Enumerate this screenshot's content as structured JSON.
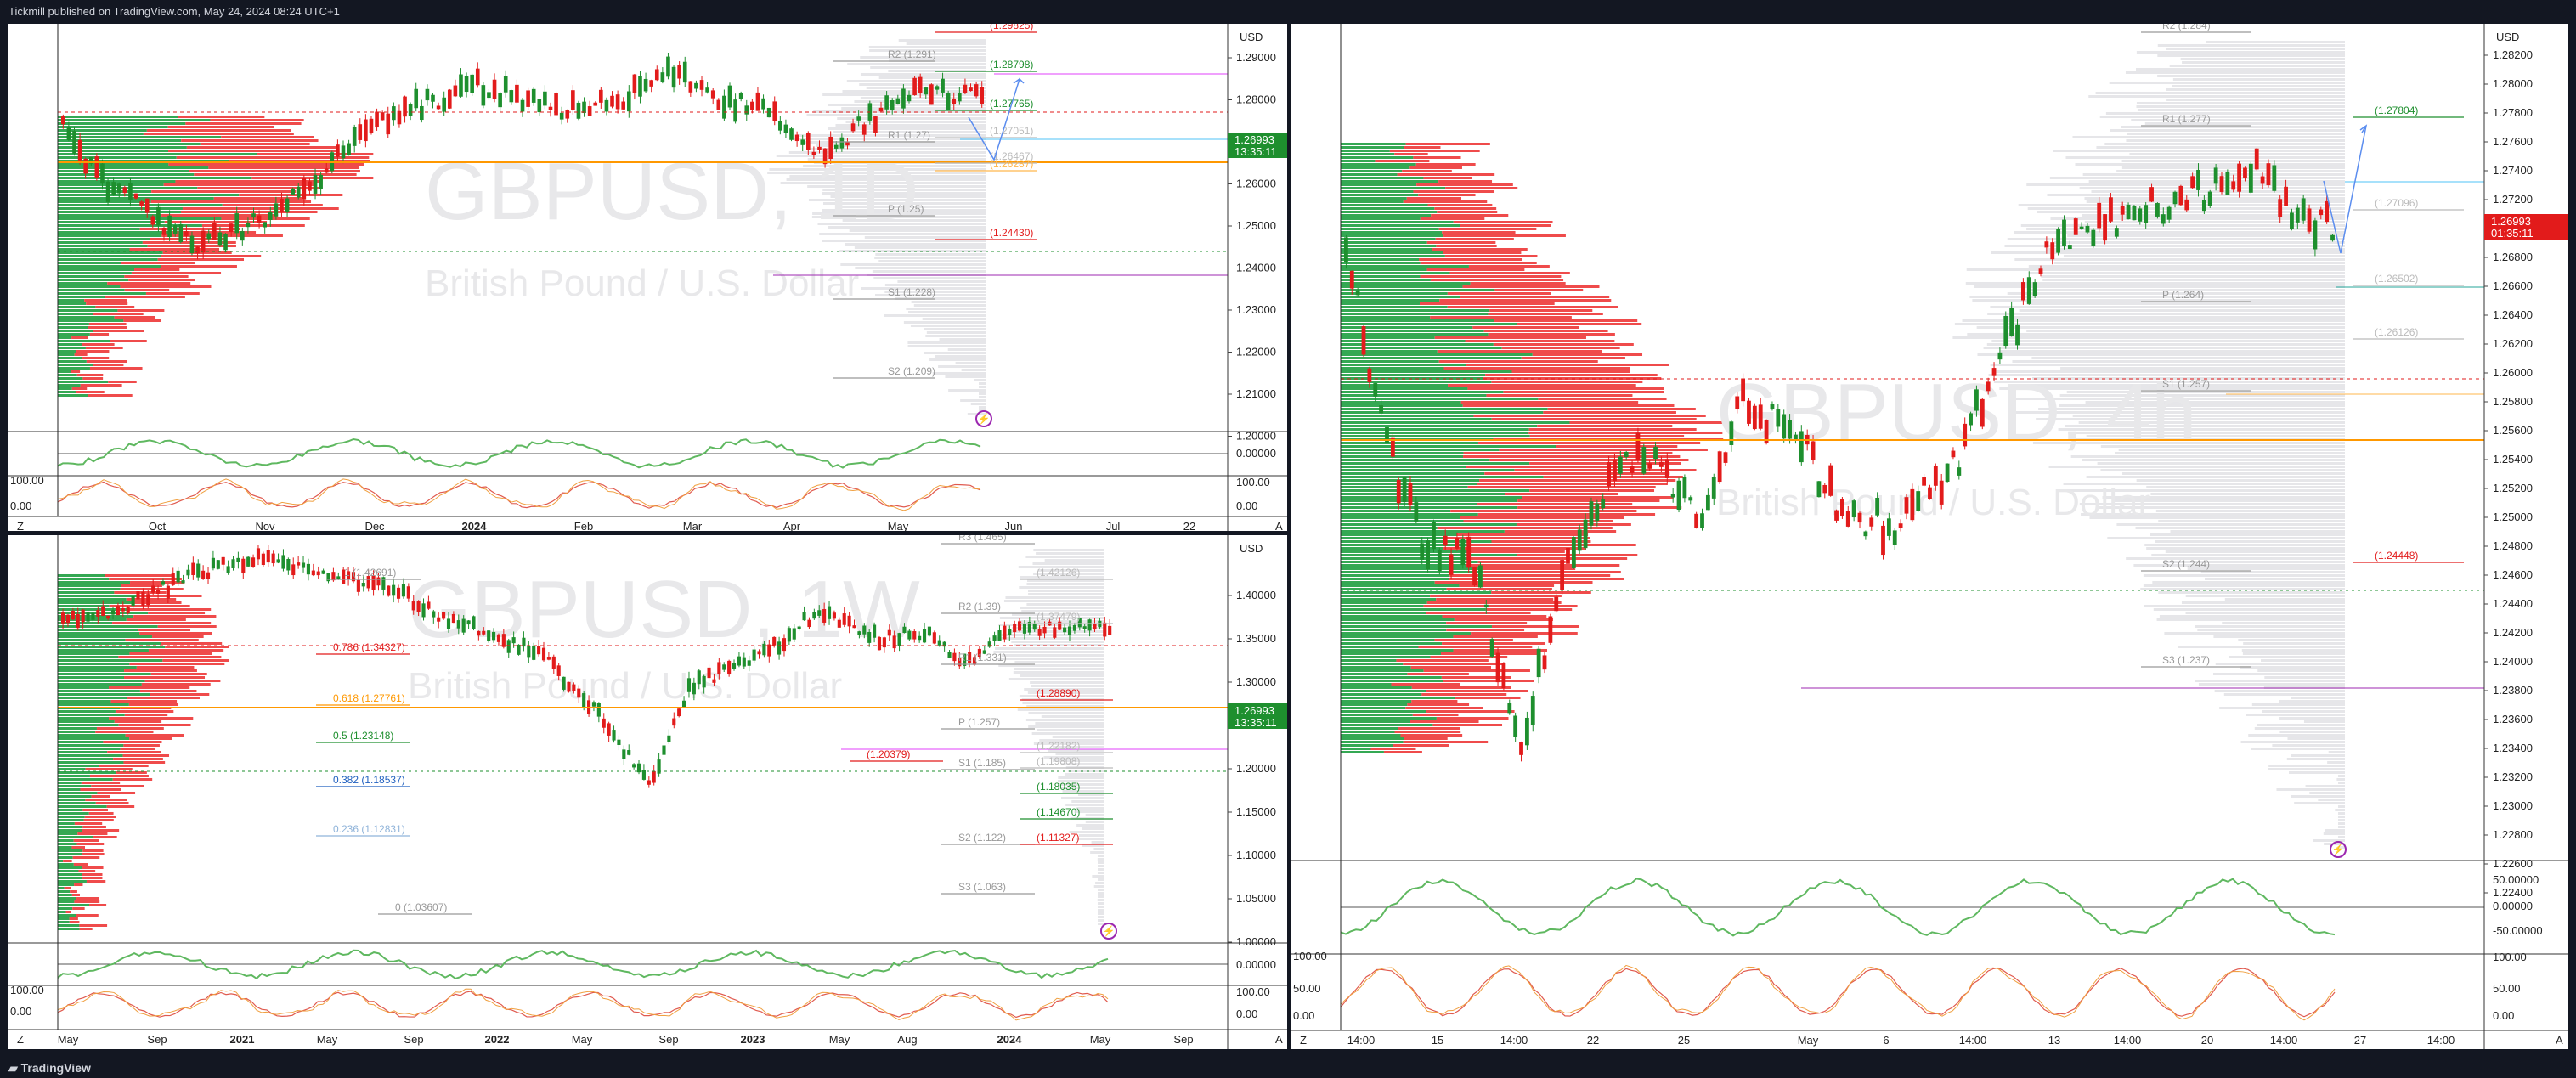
{
  "header": {
    "publisher": "Tickmill published on TradingView.com, May 24, 2024 08:24 UTC+1"
  },
  "footer": {
    "brand": "TradingView"
  },
  "colors": {
    "up": "#1e8f2e",
    "down": "#e21b1b",
    "accent_orange": "#ff9800",
    "bg": "#131722"
  },
  "panels": {
    "daily": {
      "symbol_watermark": "GBPUSD, 1D",
      "desc_watermark": "British Pound / U.S. Dollar",
      "currency": "USD",
      "price_axis": [
        "1.29000",
        "1.28000",
        "1.27000",
        "1.26000",
        "1.25000",
        "1.24000",
        "1.23000",
        "1.22000",
        "1.21000",
        "1.20000"
      ],
      "osc_axis": [
        "0.00000",
        "100.00",
        "0.00"
      ],
      "time_axis": [
        "Oct",
        "Nov",
        "Dec",
        "2024",
        "Feb",
        "Mar",
        "Apr",
        "May",
        "Jun",
        "Jul",
        "22"
      ],
      "price_box": {
        "price": "1.26993",
        "timer": "13:35:11"
      },
      "levels": [
        {
          "label": "(1.29825)",
          "color": "#e21b1b"
        },
        {
          "label": "R2 (1.291)",
          "color": "#999999"
        },
        {
          "label": "(1.28798)",
          "color": "#1e8f2e"
        },
        {
          "label": "(1.27765)",
          "color": "#1e8f2e"
        },
        {
          "label": "R1 (1.27)",
          "color": "#999999"
        },
        {
          "label": "(1.27051)",
          "color": "#bbbbbb"
        },
        {
          "label": "(1.26467)",
          "color": "#bbbbbb"
        },
        {
          "label": "(1.26287)",
          "color": "#ffb74d"
        },
        {
          "label": "P (1.25)",
          "color": "#999999"
        },
        {
          "label": "(1.24430)",
          "color": "#e21b1b"
        },
        {
          "label": "S1 (1.228)",
          "color": "#999999"
        },
        {
          "label": "S2 (1.209)",
          "color": "#999999"
        }
      ],
      "axis_corner": "Z",
      "axis_corner_right": "A"
    },
    "weekly": {
      "symbol_watermark": "GBPUSD, 1W",
      "desc_watermark": "British Pound / U.S. Dollar",
      "currency": "USD",
      "price_axis": [
        "1.40000",
        "1.35000",
        "1.30000",
        "1.25000",
        "1.20000",
        "1.15000",
        "1.10000",
        "1.05000",
        "1.00000"
      ],
      "osc_axis": [
        "0.00000",
        "100.00",
        "0.00"
      ],
      "time_axis": [
        "May",
        "Sep",
        "2021",
        "May",
        "Sep",
        "2022",
        "May",
        "Sep",
        "2023",
        "May",
        "Aug",
        "2024",
        "May",
        "Sep"
      ],
      "price_box": {
        "price": "1.26993",
        "timer": "13:35:11"
      },
      "levels": [
        {
          "label": "R3 (1.465)",
          "color": "#999999"
        },
        {
          "label": "1 (1.42691)",
          "color": "#999999"
        },
        {
          "label": "(1.42126)",
          "color": "#bbbbbb"
        },
        {
          "label": "R2 (1.39)",
          "color": "#999999"
        },
        {
          "label": "(1.37479)",
          "color": "#bbbbbb"
        },
        {
          "label": "0.786 (1.34327)",
          "color": "#e21b1b"
        },
        {
          "label": "R1 (1.331)",
          "color": "#999999"
        },
        {
          "label": "(1.28890)",
          "color": "#e21b1b"
        },
        {
          "label": "0.618 (1.27761)",
          "color": "#ff9800"
        },
        {
          "label": "P (1.257)",
          "color": "#999999"
        },
        {
          "label": "0.5 (1.23148)",
          "color": "#1e8f2e"
        },
        {
          "label": "(1.22182)",
          "color": "#bbbbbb"
        },
        {
          "label": "(1.20379)",
          "color": "#e21b1b"
        },
        {
          "label": "S1 (1.185)",
          "color": "#999999"
        },
        {
          "label": "(1.19808)",
          "color": "#bbbbbb"
        },
        {
          "label": "0.382 (1.18537)",
          "color": "#1f5fbf"
        },
        {
          "label": "(1.18035)",
          "color": "#1e8f2e"
        },
        {
          "label": "(1.14670)",
          "color": "#1e8f2e"
        },
        {
          "label": "0.236 (1.12831)",
          "color": "#8fb3d9"
        },
        {
          "label": "S2 (1.122)",
          "color": "#999999"
        },
        {
          "label": "(1.11327)",
          "color": "#e21b1b"
        },
        {
          "label": "S3 (1.063)",
          "color": "#999999"
        },
        {
          "label": "0 (1.03607)",
          "color": "#999999"
        }
      ],
      "axis_corner": "Z",
      "axis_corner_right": "A"
    },
    "h4": {
      "symbol_watermark": "GBPUSD, 4h",
      "desc_watermark": "British Pound / U.S. Dollar",
      "currency": "USD",
      "price_axis": [
        "1.28200",
        "1.28000",
        "1.27800",
        "1.27600",
        "1.27400",
        "1.27200",
        "1.27000",
        "1.26800",
        "1.26600",
        "1.26400",
        "1.26200",
        "1.26000",
        "1.25800",
        "1.25600",
        "1.25400",
        "1.25200",
        "1.25000",
        "1.24800",
        "1.24600",
        "1.24400",
        "1.24200",
        "1.24000",
        "1.23800",
        "1.23600",
        "1.23400",
        "1.23200",
        "1.23000",
        "1.22800",
        "1.22600",
        "1.22400"
      ],
      "osc_axis": [
        "50.00000",
        "0.00000",
        "-50.00000",
        "100.00",
        "50.00",
        "0.00"
      ],
      "time_axis": [
        "14:00",
        "15",
        "14:00",
        "22",
        "25",
        "May",
        "6",
        "14:00",
        "13",
        "14:00",
        "20",
        "14:00",
        "27",
        "14:00"
      ],
      "price_box": {
        "price": "1.26993",
        "timer": "01:35:11"
      },
      "levels": [
        {
          "label": "R2 (1.284)",
          "color": "#999999"
        },
        {
          "label": "(1.27804)",
          "color": "#1e8f2e"
        },
        {
          "label": "R1 (1.277)",
          "color": "#999999"
        },
        {
          "label": "(1.27096)",
          "color": "#bbbbbb"
        },
        {
          "label": "(1.26502)",
          "color": "#bbbbbb"
        },
        {
          "label": "P (1.264)",
          "color": "#999999"
        },
        {
          "label": "(1.26126)",
          "color": "#bbbbbb"
        },
        {
          "label": "S1 (1.257)",
          "color": "#999999"
        },
        {
          "label": "(1.24448)",
          "color": "#e21b1b"
        },
        {
          "label": "S2 (1.244)",
          "color": "#999999"
        },
        {
          "label": "S3 (1.237)",
          "color": "#999999"
        }
      ],
      "axis_corner": "Z",
      "axis_corner_right": "A"
    }
  }
}
